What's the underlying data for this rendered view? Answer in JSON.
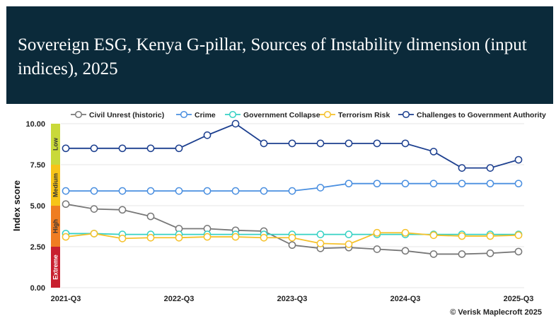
{
  "header": {
    "title": "Sovereign ESG, Kenya G-pillar, Sources of Instability dimension (input indices), 2025"
  },
  "footer": {
    "copyright": "© Verisk Maplecroft 2025"
  },
  "chart_data": {
    "type": "line",
    "ylabel": "Index score",
    "ylim": [
      0,
      10
    ],
    "yticks": [
      "0.00",
      "2.50",
      "5.00",
      "7.50",
      "10.00"
    ],
    "x": [
      "2021-Q3",
      "2021-Q4",
      "2022-Q1",
      "2022-Q2",
      "2022-Q3",
      "2022-Q4",
      "2023-Q1",
      "2023-Q2",
      "2023-Q3",
      "2023-Q4",
      "2024-Q1",
      "2024-Q2",
      "2024-Q3",
      "2024-Q4",
      "2025-Q1",
      "2025-Q2",
      "2025-Q3"
    ],
    "xtick_labels": [
      "2021-Q3",
      "2022-Q3",
      "2023-Q3",
      "2024-Q3",
      "2025-Q3"
    ],
    "grid": "horizontal",
    "legend_position": "top",
    "risk_bands": [
      {
        "label": "Extreme",
        "from": 0,
        "to": 2.5,
        "color": "#c8202f"
      },
      {
        "label": "High",
        "from": 2.5,
        "to": 5,
        "color": "#ef7d22"
      },
      {
        "label": "Medium",
        "from": 5,
        "to": 7.5,
        "color": "#f7c418"
      },
      {
        "label": "Low",
        "from": 7.5,
        "to": 10,
        "color": "#c9d93a"
      }
    ],
    "series": [
      {
        "name": "Civil Unrest (historic)",
        "color": "#777777",
        "values": [
          5.1,
          4.8,
          4.75,
          4.35,
          3.6,
          3.6,
          3.5,
          3.45,
          2.6,
          2.4,
          2.45,
          2.35,
          2.25,
          2.05,
          2.05,
          2.1,
          2.2
        ]
      },
      {
        "name": "Crime",
        "color": "#4a8fe0",
        "values": [
          5.9,
          5.9,
          5.9,
          5.9,
          5.9,
          5.9,
          5.9,
          5.9,
          5.9,
          6.1,
          6.35,
          6.35,
          6.35,
          6.35,
          6.35,
          6.35,
          6.35
        ]
      },
      {
        "name": "Government Collapse",
        "color": "#36d1c4",
        "values": [
          3.3,
          3.3,
          3.25,
          3.25,
          3.25,
          3.25,
          3.25,
          3.25,
          3.25,
          3.25,
          3.25,
          3.25,
          3.25,
          3.25,
          3.25,
          3.25,
          3.25
        ]
      },
      {
        "name": "Terrorism Risk",
        "color": "#f5c12a",
        "values": [
          3.1,
          3.3,
          3.0,
          3.05,
          3.05,
          3.1,
          3.1,
          3.05,
          3.05,
          2.7,
          2.65,
          3.35,
          3.35,
          3.2,
          3.15,
          3.15,
          3.2
        ]
      },
      {
        "name": "Challenges to Government Authority",
        "color": "#1c3f8f",
        "values": [
          8.5,
          8.5,
          8.5,
          8.5,
          8.5,
          9.3,
          10.0,
          8.8,
          8.8,
          8.8,
          8.8,
          8.8,
          8.8,
          8.3,
          7.3,
          7.3,
          7.8
        ]
      }
    ]
  }
}
